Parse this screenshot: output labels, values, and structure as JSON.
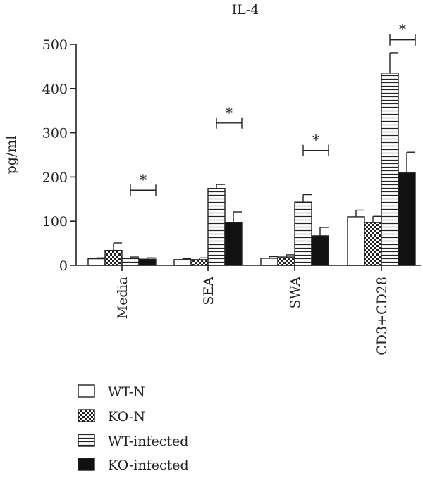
{
  "chart_data": {
    "type": "bar",
    "title": "IL-4",
    "xlabel": "",
    "ylabel": "pg/ml",
    "ylim": [
      0,
      500
    ],
    "yticks": [
      0,
      100,
      200,
      300,
      400,
      500
    ],
    "categories": [
      "Media",
      "SEA",
      "SWA",
      "CD3+CD28"
    ],
    "series": [
      {
        "name": "WT-N",
        "fill": "white",
        "values": [
          15,
          13,
          16,
          110
        ],
        "errors": [
          2,
          2,
          4,
          15
        ]
      },
      {
        "name": "KO-N",
        "fill": "checker",
        "values": [
          34,
          13,
          19,
          97
        ],
        "errors": [
          17,
          4,
          5,
          14
        ]
      },
      {
        "name": "WT-infected",
        "fill": "hlines",
        "values": [
          16,
          174,
          143,
          435
        ],
        "errors": [
          3,
          9,
          17,
          46
        ]
      },
      {
        "name": "KO-infected",
        "fill": "black",
        "values": [
          14,
          97,
          67,
          209
        ],
        "errors": [
          3,
          24,
          19,
          47
        ]
      }
    ],
    "significance": [
      {
        "category": "Media",
        "label": "*",
        "y": 170
      },
      {
        "category": "SEA",
        "label": "*",
        "y": 322
      },
      {
        "category": "SWA",
        "label": "*",
        "y": 260
      },
      {
        "category": "CD3+CD28",
        "label": "*",
        "y": 510
      }
    ],
    "legend": {
      "placement": "bottom-left"
    }
  }
}
